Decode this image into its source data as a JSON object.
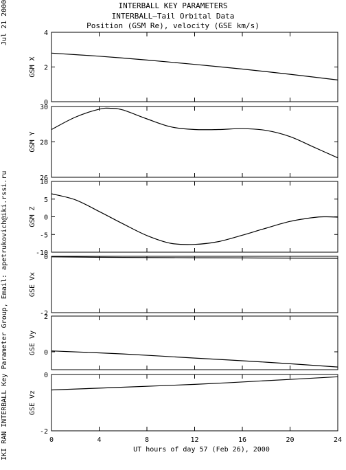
{
  "header": {
    "line1": "INTERBALL KEY PARAMETERS",
    "line2": "INTERBALL—Tail Orbital Data",
    "line3": "Position (GSM Re), velocity (GSE km/s)"
  },
  "date_label": "Jul 21 2000",
  "credit_label": "IKI RAN INTERBALL Key Parameter Group, Email: apetrukovich@iki.rssi.ru",
  "chart_data": {
    "type": "line",
    "x_label": "UT hours of day  57 (Feb 26), 2000",
    "x_range": [
      0,
      24
    ],
    "x_ticks": [
      "0",
      "4",
      "8",
      "12",
      "16",
      "20",
      "24"
    ],
    "panels": [
      {
        "ylabel": "GSM X",
        "ylim": [
          0,
          4
        ],
        "ticks": [
          "4",
          "2",
          "0"
        ],
        "tick_values": [
          4,
          2,
          0
        ],
        "x": [
          0,
          4,
          8,
          12,
          16,
          20,
          24
        ],
        "y": [
          2.8,
          2.62,
          2.4,
          2.15,
          1.88,
          1.58,
          1.25
        ]
      },
      {
        "ylabel": "GSM Y",
        "ylim": [
          26,
          30
        ],
        "ticks": [
          "30",
          "28",
          "26"
        ],
        "tick_values": [
          30,
          28,
          26
        ],
        "x": [
          0,
          2,
          4,
          5,
          6,
          8,
          10,
          12,
          14,
          16,
          18,
          20,
          22,
          24
        ],
        "y": [
          28.7,
          29.4,
          29.85,
          29.9,
          29.8,
          29.3,
          28.85,
          28.7,
          28.7,
          28.75,
          28.65,
          28.3,
          27.7,
          27.1
        ]
      },
      {
        "ylabel": "GSM Z",
        "ylim": [
          -10,
          10
        ],
        "ticks": [
          "10",
          "5",
          "0",
          "-5",
          "-10"
        ],
        "tick_values": [
          10,
          5,
          0,
          -5,
          -10
        ],
        "x": [
          0,
          2,
          4,
          6,
          8,
          10,
          12,
          14,
          16,
          18,
          20,
          22,
          23,
          24
        ],
        "y": [
          6.5,
          4.8,
          1.5,
          -2.0,
          -5.3,
          -7.5,
          -7.8,
          -7.0,
          -5.2,
          -3.2,
          -1.3,
          -0.2,
          0.0,
          -0.1
        ]
      },
      {
        "ylabel": "GSE Vx",
        "ylim": [
          -2,
          0
        ],
        "ticks": [
          "0",
          "-2"
        ],
        "tick_values": [
          0,
          -2
        ],
        "x": [
          0,
          6,
          12,
          18,
          24
        ],
        "y": [
          -0.02,
          -0.04,
          -0.05,
          -0.06,
          -0.07
        ]
      },
      {
        "ylabel": "GSE Vy",
        "ylim": [
          -1,
          2
        ],
        "ticks": [
          "2",
          "0"
        ],
        "tick_values": [
          2,
          0
        ],
        "x": [
          0,
          6,
          12,
          18,
          24
        ],
        "y": [
          0.05,
          -0.12,
          -0.35,
          -0.58,
          -0.85
        ]
      },
      {
        "ylabel": "GSE Vz",
        "ylim": [
          -2,
          0
        ],
        "ticks": [
          "0",
          "-2"
        ],
        "tick_values": [
          0,
          -2
        ],
        "x": [
          0,
          6,
          12,
          18,
          24
        ],
        "y": [
          -0.55,
          -0.45,
          -0.35,
          -0.22,
          -0.08
        ]
      }
    ]
  }
}
